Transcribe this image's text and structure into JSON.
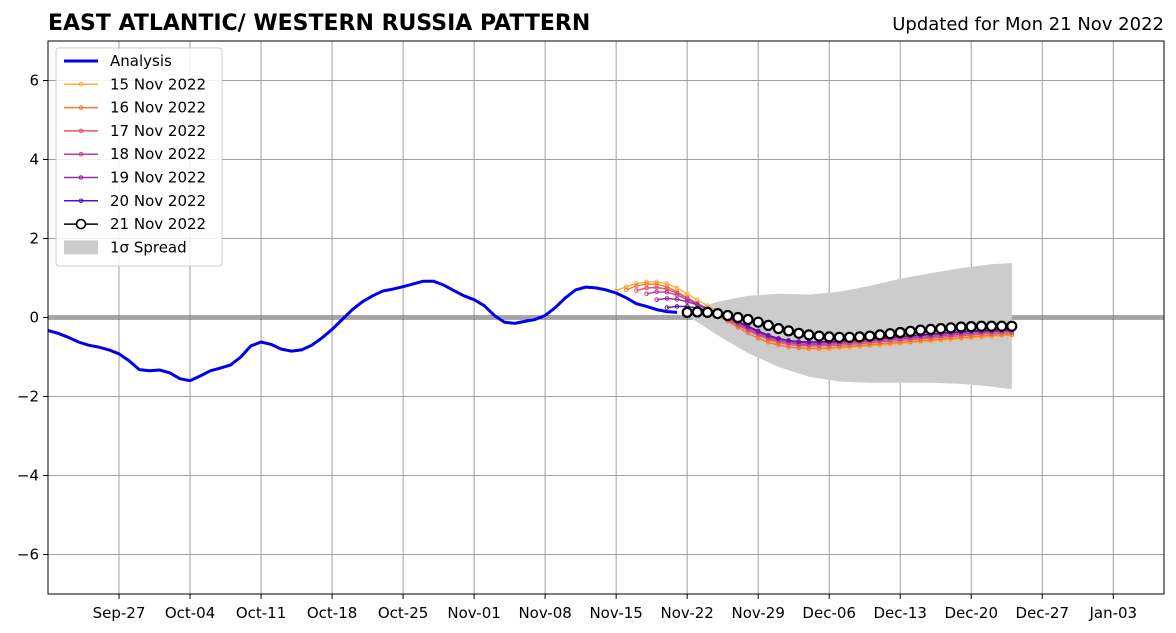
{
  "chart_data": {
    "type": "line",
    "title": "EAST ATLANTIC/ WESTERN RUSSIA PATTERN",
    "subtitle": "Updated for Mon 21 Nov 2022",
    "xlabel": "",
    "ylabel": "",
    "xlim": [
      "2022-09-20",
      "2023-01-08"
    ],
    "ylim": [
      -7,
      7
    ],
    "yticks": [
      -6,
      -4,
      -2,
      0,
      2,
      4,
      6
    ],
    "ytick_labels": [
      "−6",
      "−4",
      "−2",
      "0",
      "2",
      "4",
      "6"
    ],
    "xticks": [
      "2022-09-27",
      "2022-10-04",
      "2022-10-11",
      "2022-10-18",
      "2022-10-25",
      "2022-11-01",
      "2022-11-08",
      "2022-11-15",
      "2022-11-22",
      "2022-11-29",
      "2022-12-06",
      "2022-12-13",
      "2022-12-20",
      "2022-12-27",
      "2023-01-03"
    ],
    "xtick_labels": [
      "Sep-27",
      "Oct-04",
      "Oct-11",
      "Oct-18",
      "Oct-25",
      "Nov-01",
      "Nov-08",
      "Nov-15",
      "Nov-22",
      "Nov-29",
      "Dec-06",
      "Dec-13",
      "Dec-20",
      "Dec-27",
      "Jan-03"
    ],
    "grid": true,
    "legend_position": "top-left",
    "analysis": {
      "name": "Analysis",
      "color": "#0000ee",
      "x": [
        "2022-09-20",
        "2022-09-21",
        "2022-09-22",
        "2022-09-23",
        "2022-09-24",
        "2022-09-25",
        "2022-09-26",
        "2022-09-27",
        "2022-09-28",
        "2022-09-29",
        "2022-09-30",
        "2022-10-01",
        "2022-10-02",
        "2022-10-03",
        "2022-10-04",
        "2022-10-05",
        "2022-10-06",
        "2022-10-07",
        "2022-10-08",
        "2022-10-09",
        "2022-10-10",
        "2022-10-11",
        "2022-10-12",
        "2022-10-13",
        "2022-10-14",
        "2022-10-15",
        "2022-10-16",
        "2022-10-17",
        "2022-10-18",
        "2022-10-19",
        "2022-10-20",
        "2022-10-21",
        "2022-10-22",
        "2022-10-23",
        "2022-10-24",
        "2022-10-25",
        "2022-10-26",
        "2022-10-27",
        "2022-10-28",
        "2022-10-29",
        "2022-10-30",
        "2022-10-31",
        "2022-11-01",
        "2022-11-02",
        "2022-11-03",
        "2022-11-04",
        "2022-11-05",
        "2022-11-06",
        "2022-11-07",
        "2022-11-08",
        "2022-11-09",
        "2022-11-10",
        "2022-11-11",
        "2022-11-12",
        "2022-11-13",
        "2022-11-14",
        "2022-11-15",
        "2022-11-16",
        "2022-11-17",
        "2022-11-18",
        "2022-11-19",
        "2022-11-20",
        "2022-11-21"
      ],
      "values": [
        -0.33,
        -0.4,
        -0.5,
        -0.62,
        -0.7,
        -0.75,
        -0.82,
        -0.92,
        -1.1,
        -1.32,
        -1.35,
        -1.33,
        -1.4,
        -1.55,
        -1.6,
        -1.48,
        -1.35,
        -1.28,
        -1.2,
        -1.0,
        -0.72,
        -0.62,
        -0.68,
        -0.8,
        -0.85,
        -0.82,
        -0.7,
        -0.52,
        -0.3,
        -0.05,
        0.2,
        0.4,
        0.55,
        0.67,
        0.72,
        0.78,
        0.85,
        0.92,
        0.92,
        0.82,
        0.68,
        0.55,
        0.45,
        0.3,
        0.05,
        -0.12,
        -0.15,
        -0.1,
        -0.05,
        0.05,
        0.25,
        0.5,
        0.7,
        0.77,
        0.75,
        0.7,
        0.62,
        0.5,
        0.35,
        0.28,
        0.2,
        0.15,
        0.13
      ]
    },
    "series": [
      {
        "name": "15 Nov 2022",
        "color": "#fcb135",
        "start": "2022-11-15",
        "values": [
          0.68,
          0.78,
          0.86,
          0.9,
          0.9,
          0.86,
          0.75,
          0.6,
          0.45,
          0.3,
          0.15,
          0.0,
          -0.15,
          -0.3,
          -0.45,
          -0.58,
          -0.68,
          -0.75,
          -0.78,
          -0.8,
          -0.8,
          -0.8,
          -0.78,
          -0.76,
          -0.74,
          -0.72,
          -0.7,
          -0.68,
          -0.66,
          -0.64,
          -0.62,
          -0.6,
          -0.58,
          -0.56,
          -0.54,
          -0.52,
          -0.5,
          -0.48,
          -0.46,
          -0.45
        ]
      },
      {
        "name": "16 Nov 2022",
        "color": "#f4793e",
        "start": "2022-11-16",
        "values": [
          0.7,
          0.8,
          0.85,
          0.84,
          0.78,
          0.65,
          0.5,
          0.35,
          0.2,
          0.05,
          -0.1,
          -0.25,
          -0.4,
          -0.53,
          -0.63,
          -0.7,
          -0.75,
          -0.77,
          -0.78,
          -0.78,
          -0.77,
          -0.75,
          -0.73,
          -0.71,
          -0.69,
          -0.67,
          -0.65,
          -0.63,
          -0.61,
          -0.59,
          -0.57,
          -0.55,
          -0.53,
          -0.51,
          -0.49,
          -0.47,
          -0.45,
          -0.44,
          -0.43
        ]
      },
      {
        "name": "17 Nov 2022",
        "color": "#e3556a",
        "start": "2022-11-17",
        "values": [
          0.68,
          0.75,
          0.76,
          0.72,
          0.62,
          0.5,
          0.36,
          0.22,
          0.08,
          -0.06,
          -0.2,
          -0.33,
          -0.45,
          -0.55,
          -0.63,
          -0.68,
          -0.71,
          -0.72,
          -0.72,
          -0.71,
          -0.7,
          -0.68,
          -0.66,
          -0.64,
          -0.62,
          -0.6,
          -0.58,
          -0.56,
          -0.54,
          -0.52,
          -0.5,
          -0.48,
          -0.46,
          -0.44,
          -0.42,
          -0.41,
          -0.4,
          -0.39
        ]
      },
      {
        "name": "18 Nov 2022",
        "color": "#c33d8f",
        "start": "2022-11-18",
        "values": [
          0.6,
          0.65,
          0.64,
          0.57,
          0.46,
          0.34,
          0.22,
          0.1,
          -0.03,
          -0.16,
          -0.29,
          -0.41,
          -0.51,
          -0.59,
          -0.64,
          -0.67,
          -0.68,
          -0.68,
          -0.67,
          -0.66,
          -0.64,
          -0.62,
          -0.6,
          -0.58,
          -0.56,
          -0.54,
          -0.52,
          -0.5,
          -0.48,
          -0.46,
          -0.44,
          -0.42,
          -0.4,
          -0.38,
          -0.37,
          -0.36,
          -0.35
        ]
      },
      {
        "name": "19 Nov 2022",
        "color": "#9a27a8",
        "start": "2022-11-19",
        "values": [
          0.45,
          0.48,
          0.46,
          0.4,
          0.32,
          0.22,
          0.12,
          0.0,
          -0.12,
          -0.25,
          -0.37,
          -0.47,
          -0.55,
          -0.6,
          -0.63,
          -0.64,
          -0.64,
          -0.63,
          -0.62,
          -0.6,
          -0.58,
          -0.56,
          -0.54,
          -0.52,
          -0.5,
          -0.48,
          -0.46,
          -0.44,
          -0.42,
          -0.4,
          -0.38,
          -0.36,
          -0.35,
          -0.34,
          -0.33,
          -0.32
        ]
      },
      {
        "name": "20 Nov 2022",
        "color": "#5b11a3",
        "start": "2022-11-20",
        "values": [
          0.25,
          0.28,
          0.28,
          0.24,
          0.18,
          0.1,
          0.0,
          -0.1,
          -0.22,
          -0.34,
          -0.45,
          -0.53,
          -0.58,
          -0.61,
          -0.62,
          -0.62,
          -0.61,
          -0.6,
          -0.58,
          -0.56,
          -0.54,
          -0.52,
          -0.5,
          -0.48,
          -0.46,
          -0.44,
          -0.42,
          -0.4,
          -0.38,
          -0.36,
          -0.34,
          -0.33,
          -0.32,
          -0.31,
          -0.3
        ]
      },
      {
        "name": "21 Nov 2022",
        "color": "#000000",
        "start": "2022-11-22",
        "values": [
          0.13,
          0.14,
          0.13,
          0.1,
          0.05,
          0.0,
          -0.05,
          -0.12,
          -0.2,
          -0.28,
          -0.34,
          -0.4,
          -0.44,
          -0.47,
          -0.49,
          -0.5,
          -0.5,
          -0.49,
          -0.47,
          -0.44,
          -0.41,
          -0.38,
          -0.35,
          -0.32,
          -0.3,
          -0.28,
          -0.26,
          -0.24,
          -0.23,
          -0.22,
          -0.22,
          -0.22,
          -0.22
        ]
      }
    ],
    "spread": {
      "name": "1σ Spread",
      "color": "#cccccc",
      "x": [
        "2022-11-22",
        "2022-11-25",
        "2022-11-28",
        "2022-12-01",
        "2022-12-04",
        "2022-12-07",
        "2022-12-10",
        "2022-12-13",
        "2022-12-16",
        "2022-12-19",
        "2022-12-22",
        "2022-12-24"
      ],
      "upper": [
        0.15,
        0.4,
        0.55,
        0.6,
        0.58,
        0.65,
        0.8,
        0.98,
        1.12,
        1.25,
        1.35,
        1.38
      ],
      "lower": [
        0.05,
        -0.45,
        -0.9,
        -1.25,
        -1.5,
        -1.62,
        -1.65,
        -1.65,
        -1.65,
        -1.68,
        -1.75,
        -1.82
      ]
    },
    "legend": [
      {
        "label": "Analysis"
      },
      {
        "label": "15 Nov 2022"
      },
      {
        "label": "16 Nov 2022"
      },
      {
        "label": "17 Nov 2022"
      },
      {
        "label": "18 Nov 2022"
      },
      {
        "label": "19 Nov 2022"
      },
      {
        "label": "20 Nov 2022"
      },
      {
        "label": "21 Nov 2022"
      },
      {
        "label": "1σ Spread"
      }
    ]
  }
}
